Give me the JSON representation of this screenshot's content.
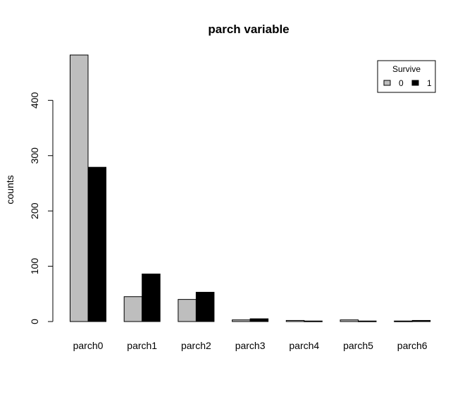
{
  "chart_data": {
    "type": "bar",
    "title": "parch variable",
    "xlabel": "",
    "ylabel": "counts",
    "categories": [
      "parch0",
      "parch1",
      "parch2",
      "parch3",
      "parch4",
      "parch5",
      "parch6"
    ],
    "series": [
      {
        "name": "0",
        "color": "#bebebe",
        "values": [
          482,
          45,
          40,
          3,
          2,
          3,
          1
        ]
      },
      {
        "name": "1",
        "color": "#000000",
        "values": [
          279,
          86,
          53,
          5,
          1,
          1,
          2
        ]
      }
    ],
    "ylim": [
      0,
      482
    ],
    "yticks": [
      0,
      100,
      200,
      300,
      400
    ],
    "legend": {
      "title": "Survive",
      "position": "top-right"
    },
    "grid": false
  }
}
